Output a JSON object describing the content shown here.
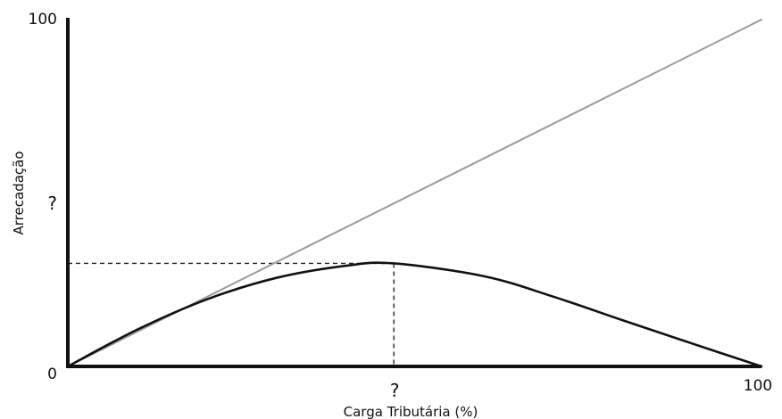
{
  "chart_data": {
    "type": "line",
    "title": "",
    "xlabel": "Carga Tributária (%)",
    "ylabel": "Arrecadação",
    "xlim": [
      0,
      100
    ],
    "ylim": [
      0,
      100
    ],
    "x_ticks": [
      "0",
      "?",
      "100"
    ],
    "y_ticks": [
      "0",
      "?",
      "100"
    ],
    "grid": false,
    "series": [
      {
        "style": "line",
        "color": "#9a9a9a",
        "x": [
          0,
          100
        ],
        "y": [
          0,
          100
        ]
      },
      {
        "style": "curve",
        "color": "#111111",
        "x": [
          0,
          10,
          20,
          30,
          40,
          47,
          60,
          70,
          80,
          90,
          100
        ],
        "y": [
          0,
          10.6,
          19.3,
          25.5,
          29.0,
          29.7,
          26.0,
          20.1,
          13.3,
          6.6,
          0
        ]
      }
    ],
    "annotations": [
      {
        "type": "dashed-guide",
        "x": 47,
        "y": 29.7,
        "label_x": "?"
      },
      {
        "type": "tick-text",
        "axis": "y",
        "y": 47,
        "text": "?"
      }
    ]
  }
}
